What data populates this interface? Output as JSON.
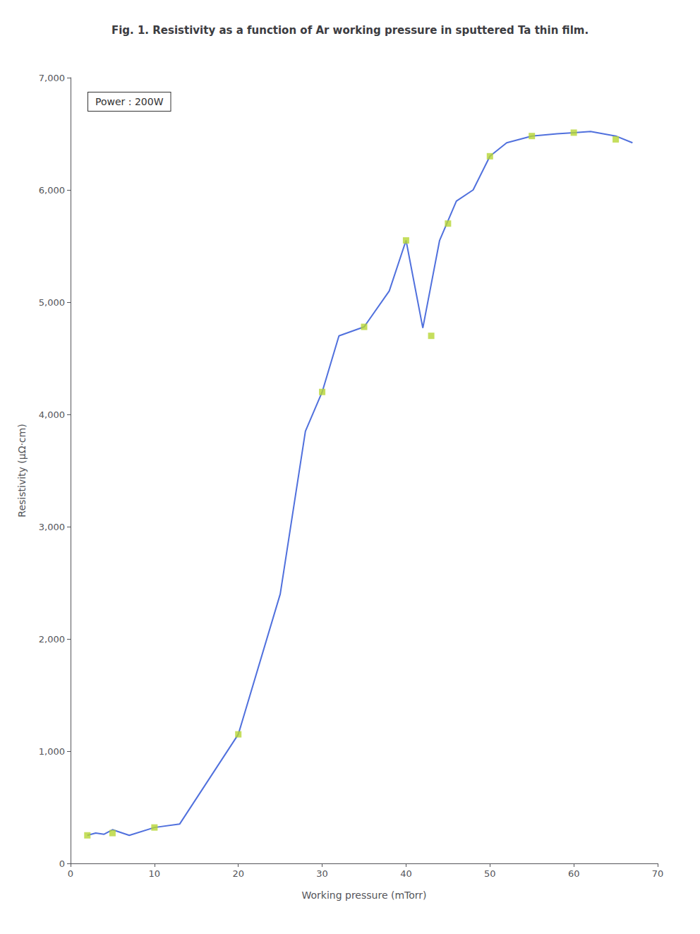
{
  "chart_data": {
    "type": "line",
    "title": "Fig. 1. Resistivity as a function of Ar working pressure in sputtered Ta thin film.",
    "annotations": [
      "Power : 200W"
    ],
    "x_label": "Working pressure (mTorr)",
    "y_label": "Resistivity (μΩ·cm)",
    "xlim": [
      0,
      70
    ],
    "ylim": [
      0,
      7000
    ],
    "xticks": [
      0,
      10,
      20,
      30,
      40,
      50,
      60,
      70
    ],
    "yticks": [
      0,
      1000,
      2000,
      3000,
      4000,
      5000,
      6000,
      7000
    ],
    "grid": false,
    "series": [
      {
        "type": "line",
        "marker": "none",
        "line_style": "solid",
        "x": [
          2,
          3,
          4,
          5,
          7,
          10,
          13,
          20,
          25,
          28,
          30,
          32,
          35,
          38,
          40,
          42,
          44,
          46,
          48,
          50,
          52,
          55,
          58,
          60,
          62,
          65,
          67
        ],
        "values": [
          250,
          270,
          260,
          300,
          250,
          320,
          350,
          1150,
          2400,
          3850,
          4200,
          4700,
          4780,
          5100,
          5550,
          4770,
          5550,
          5900,
          6000,
          6300,
          6420,
          6480,
          6500,
          6510,
          6520,
          6480,
          6420
        ]
      },
      {
        "type": "scatter",
        "marker": "square",
        "x": [
          2,
          5,
          10,
          20,
          30,
          35,
          40,
          43,
          45,
          50,
          55,
          60,
          65
        ],
        "values": [
          250,
          270,
          320,
          1150,
          4200,
          4780,
          5550,
          4700,
          5700,
          6300,
          6480,
          6510,
          6450
        ]
      }
    ]
  }
}
